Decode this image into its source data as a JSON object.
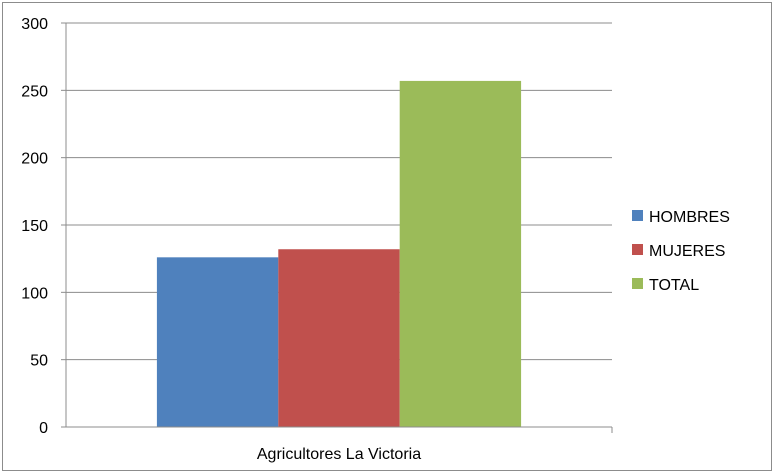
{
  "chart_data": {
    "type": "bar",
    "categories": [
      "Agricultores La Victoria"
    ],
    "series": [
      {
        "name": "HOMBRES",
        "values": [
          126
        ],
        "color": "#4F81BD"
      },
      {
        "name": "MUJERES",
        "values": [
          132
        ],
        "color": "#C0504D"
      },
      {
        "name": "TOTAL",
        "values": [
          257
        ],
        "color": "#9BBB59"
      }
    ],
    "y_ticks": [
      "0",
      "50",
      "100",
      "150",
      "200",
      "250",
      "300"
    ],
    "ylim": [
      0,
      300
    ],
    "grid": true,
    "legend_position": "right"
  }
}
